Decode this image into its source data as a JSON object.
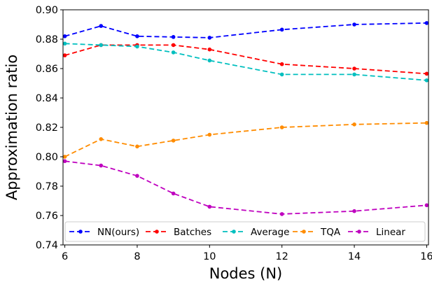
{
  "chart_data": {
    "type": "line",
    "xlabel": "Nodes (N)",
    "ylabel": "Approximation ratio",
    "xlim": [
      5.95,
      16.05
    ],
    "ylim": [
      0.74,
      0.9
    ],
    "xticks": [
      "6",
      "8",
      "10",
      "12",
      "14",
      "16"
    ],
    "yticks": [
      "0.74",
      "0.76",
      "0.78",
      "0.80",
      "0.82",
      "0.84",
      "0.86",
      "0.88",
      "0.90"
    ],
    "x": [
      6,
      7,
      8,
      9,
      10,
      12,
      14,
      16
    ],
    "grid": false,
    "legend_position": "bottom",
    "series": [
      {
        "name": "NN(ours)",
        "color": "#0000ff",
        "values": [
          0.882,
          0.889,
          0.882,
          0.8815,
          0.881,
          0.8865,
          0.89,
          0.891
        ]
      },
      {
        "name": "Batches",
        "color": "#ff0000",
        "values": [
          0.869,
          0.876,
          0.876,
          0.876,
          0.873,
          0.863,
          0.86,
          0.8565
        ]
      },
      {
        "name": "Average",
        "color": "#00bfbf",
        "values": [
          0.877,
          0.876,
          0.875,
          0.871,
          0.8655,
          0.856,
          0.856,
          0.852
        ]
      },
      {
        "name": "TQA",
        "color": "#ff8c00",
        "values": [
          0.8,
          0.812,
          0.807,
          0.811,
          0.815,
          0.82,
          0.822,
          0.823
        ]
      },
      {
        "name": "Linear",
        "color": "#bf00bf",
        "values": [
          0.797,
          0.794,
          0.787,
          0.775,
          0.766,
          0.761,
          0.763,
          0.767
        ]
      }
    ]
  }
}
